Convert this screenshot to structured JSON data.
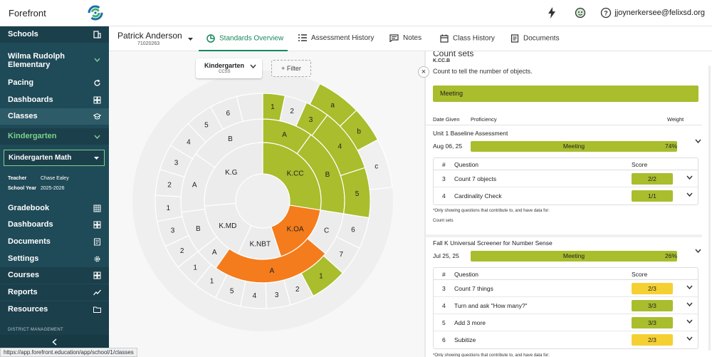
{
  "app": {
    "name": "Forefront",
    "user_email": "jjoynerkersee@felixsd.org"
  },
  "status_url": "https://app.forefront.education/app/school/1/classes",
  "colors": {
    "sidebar": "#1f4a58",
    "accent_green": "#16895c",
    "meeting": "#a9bd2d",
    "orange": "#f47c1c",
    "partial": "#f5d033"
  },
  "sidebar": {
    "schools": "Schools",
    "school_name": "Wilma Rudolph Elementary",
    "pacing": "Pacing",
    "dashboards": "Dashboards",
    "classes": "Classes",
    "grade": "Kindergarten",
    "class_name": "Kindergarten Math",
    "teacher_label": "Teacher",
    "teacher_value": "Chase Ealey",
    "year_label": "School Year",
    "year_value": "2025-2026",
    "gradebook": "Gradebook",
    "dashboards2": "Dashboards",
    "documents": "Documents",
    "settings": "Settings",
    "courses": "Courses",
    "reports": "Reports",
    "resources": "Resources",
    "district": "DISTRICT MANAGEMENT"
  },
  "student": {
    "name": "Patrick Anderson",
    "id": "71020263"
  },
  "tabs": [
    "Standards Overview",
    "Assessment History",
    "Notes",
    "Class History",
    "Documents"
  ],
  "wheel": {
    "grade": "Kindergarten",
    "framework": "CCSS",
    "filter": "+ Filter",
    "domains": [
      "K.CC",
      "K.OA",
      "K.NBT",
      "K.MD",
      "K.G"
    ],
    "clusters": [
      "A",
      "B",
      "C",
      "A",
      "A",
      "B",
      "A",
      "B"
    ],
    "standards": [
      "1",
      "2",
      "3",
      "4",
      "5",
      "6",
      "7",
      "1",
      "2",
      "3",
      "4",
      "5",
      "1",
      "1",
      "2",
      "3",
      "1",
      "2",
      "3",
      "4",
      "5",
      "6"
    ],
    "substandards": [
      "a",
      "b",
      "c"
    ]
  },
  "panel": {
    "title": "Count sets",
    "code": "K.CC.B",
    "description": "Count to tell the number of objects.",
    "overall": "Meeting",
    "col_date": "Date Given",
    "col_prof": "Proficiency",
    "col_weight": "Weight",
    "q_col_num": "#",
    "q_col_question": "Question",
    "q_col_score": "Score",
    "footnote": "*Only showing questions that contribute to, and have data for:",
    "footnote_target": "Count sets",
    "assessments": [
      {
        "name": "Unit 1 Baseline Assessment",
        "date": "Aug 06, 25",
        "proficiency": "Meeting",
        "weight": "74%",
        "questions": [
          {
            "num": "3",
            "text": "Count 7 objects",
            "score": "2/2",
            "level": "meeting"
          },
          {
            "num": "4",
            "text": "Cardinality Check",
            "score": "1/1",
            "level": "meeting"
          }
        ]
      },
      {
        "name": "Fall K Universal Screener for Number Sense",
        "date": "Jul 25, 25",
        "proficiency": "Meeting",
        "weight": "26%",
        "questions": [
          {
            "num": "3",
            "text": "Count 7 things",
            "score": "2/3",
            "level": "partial"
          },
          {
            "num": "4",
            "text": "Turn and ask \"How many?\"",
            "score": "3/3",
            "level": "meeting"
          },
          {
            "num": "5",
            "text": "Add 3 more",
            "score": "3/3",
            "level": "meeting"
          },
          {
            "num": "6",
            "text": "Subitize",
            "score": "2/3",
            "level": "partial"
          }
        ]
      }
    ]
  }
}
